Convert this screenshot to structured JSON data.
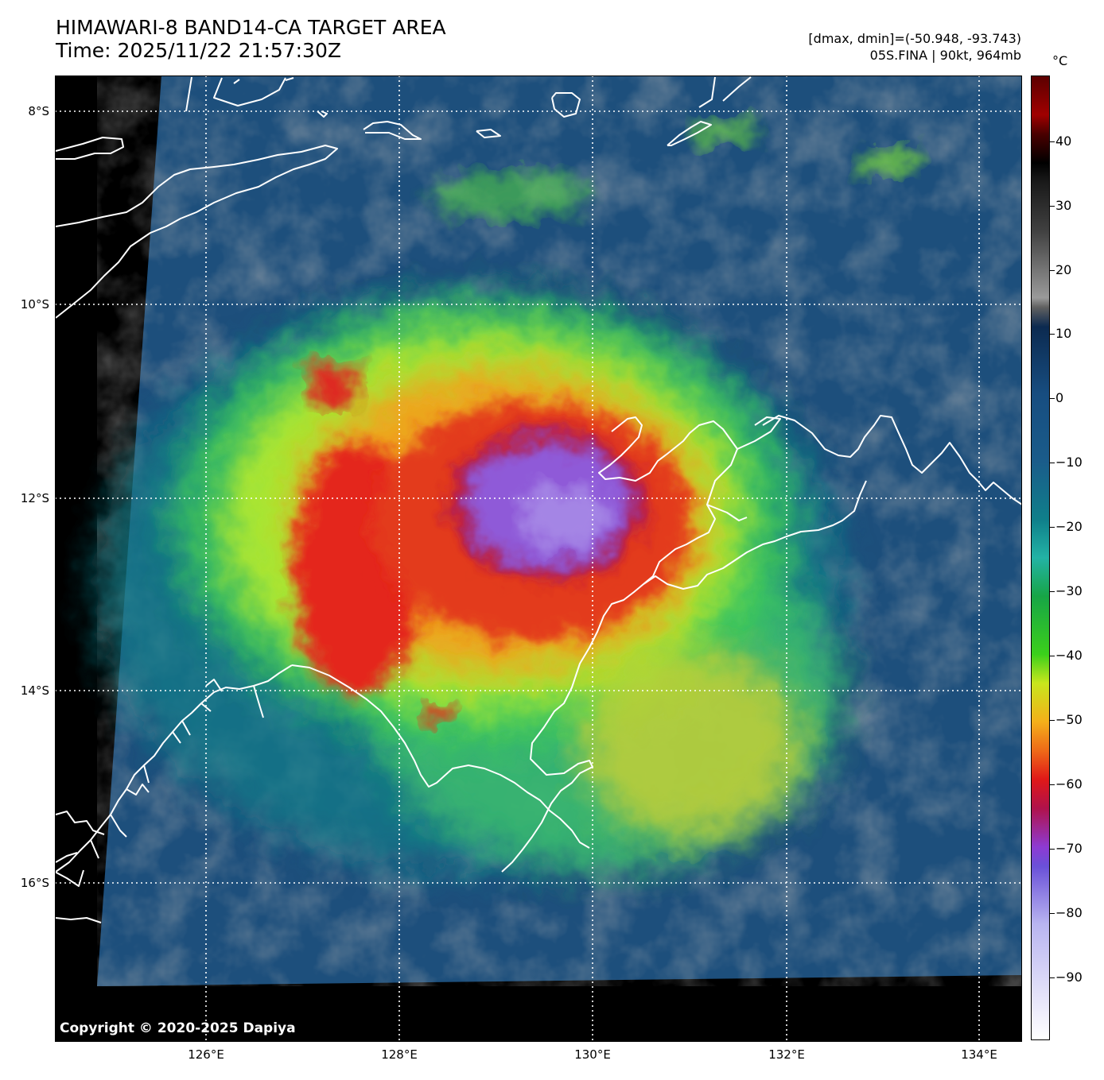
{
  "header": {
    "title_line1": "HIMAWARI-8 BAND14-CA TARGET AREA",
    "title_line2": "Time: 2025/11/22 21:57:30Z",
    "info_line1": "[dmax, dmin]=(-50.948, -93.743)",
    "info_line2": "05S.FINA | 90kt, 964mb"
  },
  "axes": {
    "lat_labels": [
      "8°S",
      "10°S",
      "12°S",
      "14°S",
      "16°S"
    ],
    "lon_labels": [
      "126°E",
      "128°E",
      "130°E",
      "132°E",
      "134°E"
    ],
    "lat_range": [
      "7.6°S",
      "17.6°S"
    ],
    "lon_range": [
      "124.5°E",
      "134.5°E"
    ]
  },
  "colorbar": {
    "unit": "°C",
    "labels": [
      "40",
      "30",
      "20",
      "10",
      "0",
      "−10",
      "−20",
      "−30",
      "−40",
      "−50",
      "−60",
      "−70",
      "−80",
      "−90"
    ],
    "range": [
      -100,
      50
    ]
  },
  "storm": {
    "name": "05S.FINA",
    "center_lon": 129.6,
    "center_lat": -12.1
  },
  "copyright": "Copyright © 2020-2025 Dapiya"
}
